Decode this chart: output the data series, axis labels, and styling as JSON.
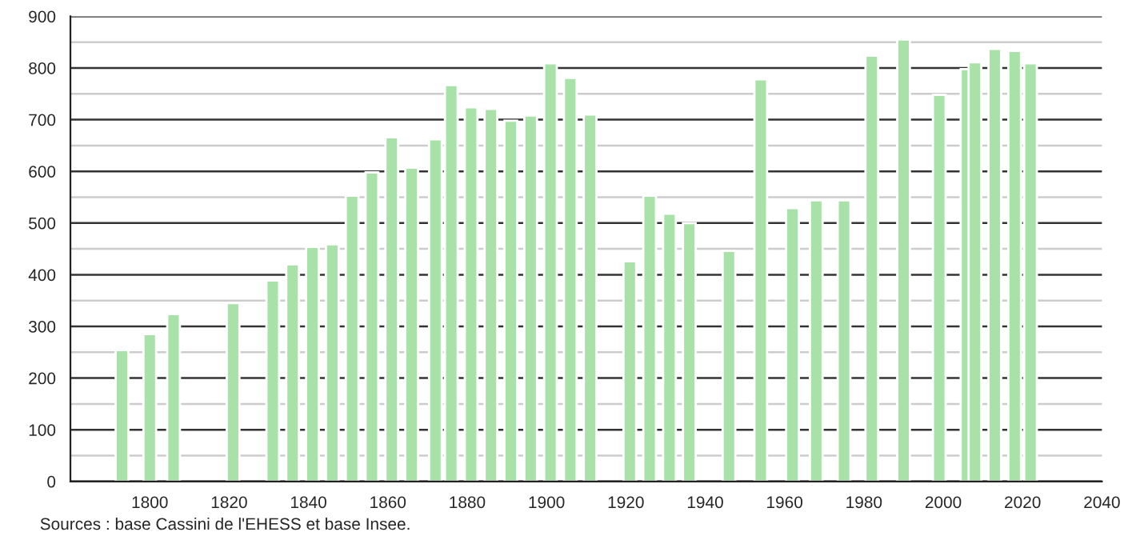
{
  "chart_data": {
    "type": "bar",
    "x": [
      1793,
      1800,
      1806,
      1821,
      1831,
      1836,
      1841,
      1846,
      1851,
      1856,
      1861,
      1866,
      1872,
      1876,
      1881,
      1886,
      1891,
      1896,
      1901,
      1906,
      1911,
      1921,
      1926,
      1931,
      1936,
      1946,
      1954,
      1962,
      1968,
      1975,
      1982,
      1990,
      1999,
      2006,
      2008,
      2013,
      2018,
      2022
    ],
    "values": [
      254,
      285,
      324,
      345,
      389,
      420,
      454,
      459,
      553,
      598,
      666,
      607,
      662,
      767,
      724,
      721,
      698,
      708,
      809,
      781,
      710,
      426,
      553,
      518,
      500,
      446,
      778,
      529,
      544,
      544,
      824,
      855,
      748,
      798,
      811,
      837,
      833,
      809
    ],
    "color": "#a8e2a8",
    "xlim": [
      1780,
      2040
    ],
    "xticks": [
      1800,
      1820,
      1840,
      1860,
      1880,
      1900,
      1920,
      1940,
      1960,
      1980,
      2000,
      2020,
      2040
    ],
    "ylim": [
      0,
      900
    ],
    "yticks": [
      0,
      {
        "value": 50,
        "label": null
      },
      100,
      {
        "value": 150,
        "label": null
      },
      200,
      {
        "value": 250,
        "label": null
      },
      300,
      {
        "value": 350,
        "label": null
      },
      400,
      {
        "value": 450,
        "label": null
      },
      500,
      {
        "value": 550,
        "label": null
      },
      600,
      {
        "value": 650,
        "label": null
      },
      700,
      {
        "value": 750,
        "label": null
      },
      800,
      {
        "value": 850,
        "label": null
      },
      900
    ],
    "grid": "y",
    "annotations": [
      "Sources : base Cassini de l'EHESS et base Insee."
    ]
  }
}
